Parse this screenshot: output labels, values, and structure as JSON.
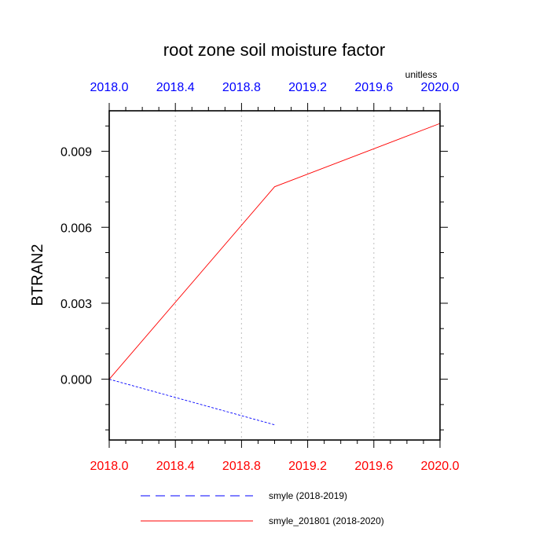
{
  "chart_data": {
    "type": "line",
    "title": "root zone soil moisture factor",
    "units_label": "unitless",
    "ylabel": "BTRAN2",
    "xlim": [
      2018.0,
      2020.0
    ],
    "ylim": [
      -0.0024,
      0.0106
    ],
    "xticks": [
      2018.0,
      2018.4,
      2018.8,
      2019.2,
      2019.6,
      2020.0
    ],
    "xtick_labels": [
      "2018.0",
      "2018.4",
      "2018.8",
      "2019.2",
      "2019.6",
      "2020.0"
    ],
    "yticks": [
      0.0,
      0.003,
      0.006,
      0.009
    ],
    "ytick_labels": [
      "0.000",
      "0.003",
      "0.006",
      "0.009"
    ],
    "grid_x": true,
    "top_axis_color": "#0000ff",
    "bottom_axis_color": "#ff0000",
    "legend_position": "bottom",
    "series": [
      {
        "name": "smyle (2018-2019)",
        "color": "#0000ff",
        "style": "dashed",
        "x": [
          2018.0,
          2019.0
        ],
        "y": [
          0.0,
          -0.0018
        ]
      },
      {
        "name": "smyle_201801 (2018-2020)",
        "color": "#ff0000",
        "style": "solid",
        "x": [
          2018.0,
          2019.0,
          2020.0
        ],
        "y": [
          0.0,
          0.0076,
          0.0101
        ]
      }
    ]
  }
}
